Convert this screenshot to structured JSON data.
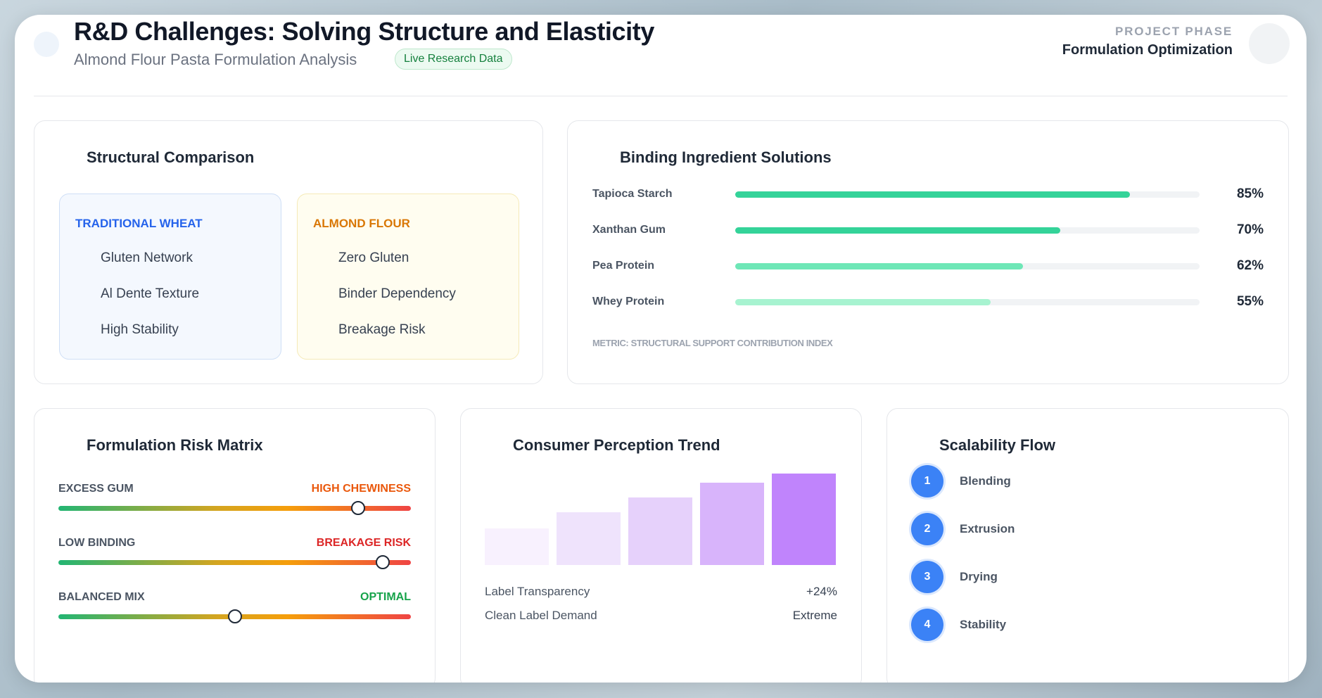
{
  "header": {
    "title": "R&D Challenges: Solving Structure and Elasticity",
    "subtitle": "Almond Flour Pasta Formulation Analysis",
    "badge": "Live Research Data",
    "phase_label": "PROJECT PHASE",
    "phase_value": "Formulation Optimization"
  },
  "structural": {
    "title": "Structural Comparison",
    "wheat": {
      "heading": "TRADITIONAL WHEAT",
      "items": [
        "Gluten Network",
        "Al Dente Texture",
        "High Stability"
      ]
    },
    "almond": {
      "heading": "ALMOND FLOUR",
      "items": [
        "Zero Gluten",
        "Binder Dependency",
        "Breakage Risk"
      ]
    }
  },
  "binding": {
    "title": "Binding Ingredient Solutions",
    "items": [
      {
        "label": "Tapioca Starch",
        "value": 85,
        "pct": "85%",
        "color": "#34d399"
      },
      {
        "label": "Xanthan Gum",
        "value": 70,
        "pct": "70%",
        "color": "#34d399"
      },
      {
        "label": "Pea Protein",
        "value": 62,
        "pct": "62%",
        "color": "#6ee7b7"
      },
      {
        "label": "Whey Protein",
        "value": 55,
        "pct": "55%",
        "color": "#a7f3d0"
      }
    ],
    "metric_note": "METRIC: STRUCTURAL SUPPORT CONTRIBUTION INDEX"
  },
  "risk": {
    "title": "Formulation Risk Matrix",
    "rows": [
      {
        "left": "EXCESS GUM",
        "right": "HIGH CHEWINESS",
        "right_color": "#ea580c",
        "level": 0.85
      },
      {
        "left": "LOW BINDING",
        "right": "BREAKAGE RISK",
        "right_color": "#dc2626",
        "level": 0.92
      },
      {
        "left": "BALANCED MIX",
        "right": "OPTIMAL",
        "right_color": "#16a34a",
        "level": 0.5
      }
    ]
  },
  "consumer": {
    "title": "Consumer Perception Trend",
    "chart_data": {
      "type": "bar",
      "values": [
        40,
        58,
        74,
        90,
        100
      ],
      "colors": [
        "#f8f1fe",
        "#efe3fc",
        "#e6d1fb",
        "#d8b4fb",
        "#c084fc"
      ]
    },
    "rows": [
      {
        "label": "Label Transparency",
        "value": "+24%"
      },
      {
        "label": "Clean Label Demand",
        "value": "Extreme"
      }
    ]
  },
  "scalability": {
    "title": "Scalability Flow",
    "steps": [
      {
        "num": "1",
        "label": "Blending"
      },
      {
        "num": "2",
        "label": "Extrusion"
      },
      {
        "num": "3",
        "label": "Drying"
      },
      {
        "num": "4",
        "label": "Stability"
      }
    ]
  },
  "icons": [
    "header-avatar-icon",
    "profile-avatar-icon"
  ]
}
